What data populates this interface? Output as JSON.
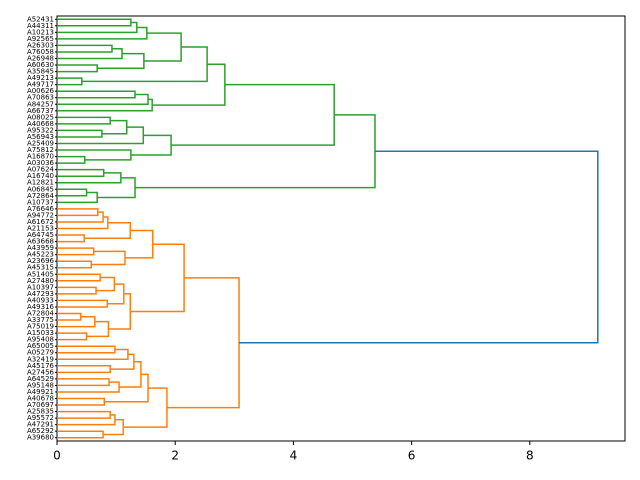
{
  "chart_data": {
    "type": "dendrogram",
    "orientation": "horizontal",
    "xlim": [
      0,
      9.61
    ],
    "xticks": [
      0,
      2,
      4,
      6,
      8
    ],
    "tree": {
      "height": 9.15,
      "color": "#1f77b4",
      "children": [
        {
          "height": 5.38,
          "color": "#2ca02c",
          "children": [
            {
              "height": 4.69,
              "children": [
                {
                  "height": 2.84,
                  "children": [
                    {
                      "height": 2.54,
                      "children": [
                        {
                          "height": 2.1,
                          "children": [
                            {
                              "height": 1.52,
                              "children": [
                                {
                                  "height": 1.35,
                                  "children": [
                                    {
                                      "height": 1.25,
                                      "children": [
                                        {
                                          "label": "A52431"
                                        },
                                        {
                                          "label": "A44311"
                                        }
                                      ]
                                    },
                                    {
                                      "label": "A10213"
                                    }
                                  ]
                                },
                                {
                                  "label": "A92565"
                                }
                              ]
                            },
                            {
                              "height": 1.47,
                              "children": [
                                {
                                  "height": 1.1,
                                  "children": [
                                    {
                                      "height": 0.93,
                                      "children": [
                                        {
                                          "label": "A26303"
                                        },
                                        {
                                          "label": "A76058"
                                        }
                                      ]
                                    },
                                    {
                                      "label": "A26948"
                                    }
                                  ]
                                },
                                {
                                  "height": 0.68,
                                  "children": [
                                    {
                                      "label": "A60630"
                                    },
                                    {
                                      "label": "A35845"
                                    }
                                  ]
                                }
                              ]
                            }
                          ]
                        },
                        {
                          "height": 0.42,
                          "children": [
                            {
                              "label": "A49213"
                            },
                            {
                              "label": "A49717"
                            }
                          ]
                        }
                      ]
                    },
                    {
                      "height": 1.61,
                      "children": [
                        {
                          "height": 1.54,
                          "children": [
                            {
                              "height": 1.32,
                              "children": [
                                {
                                  "label": "A00626"
                                },
                                {
                                  "label": "A70863"
                                }
                              ]
                            },
                            {
                              "label": "A84257"
                            }
                          ]
                        },
                        {
                          "label": "A66737"
                        }
                      ]
                    }
                  ]
                },
                {
                  "height": 1.93,
                  "children": [
                    {
                      "height": 1.46,
                      "children": [
                        {
                          "height": 1.18,
                          "children": [
                            {
                              "height": 0.9,
                              "children": [
                                {
                                  "label": "A08025"
                                },
                                {
                                  "label": "A40668"
                                }
                              ]
                            },
                            {
                              "height": 0.76,
                              "children": [
                                {
                                  "label": "A95322"
                                },
                                {
                                  "label": "A56943"
                                }
                              ]
                            }
                          ]
                        },
                        {
                          "label": "A25409"
                        }
                      ]
                    },
                    {
                      "height": 1.25,
                      "children": [
                        {
                          "label": "A75812"
                        },
                        {
                          "height": 0.47,
                          "children": [
                            {
                              "label": "A16870"
                            },
                            {
                              "label": "A03036"
                            }
                          ]
                        }
                      ]
                    }
                  ]
                }
              ]
            },
            {
              "height": 1.32,
              "children": [
                {
                  "height": 1.08,
                  "children": [
                    {
                      "height": 0.79,
                      "children": [
                        {
                          "label": "A07624"
                        },
                        {
                          "label": "A16740"
                        }
                      ]
                    },
                    {
                      "label": "A12821"
                    }
                  ]
                },
                {
                  "height": 0.68,
                  "children": [
                    {
                      "height": 0.5,
                      "children": [
                        {
                          "label": "A06845"
                        },
                        {
                          "label": "A72864"
                        }
                      ]
                    },
                    {
                      "label": "A10737"
                    }
                  ]
                }
              ]
            }
          ]
        },
        {
          "height": 3.08,
          "color": "#ff7f0e",
          "children": [
            {
              "height": 2.15,
              "children": [
                {
                  "height": 1.62,
                  "children": [
                    {
                      "height": 1.24,
                      "children": [
                        {
                          "height": 0.86,
                          "children": [
                            {
                              "height": 0.78,
                              "children": [
                                {
                                  "height": 0.69,
                                  "children": [
                                    {
                                      "label": "A76646"
                                    },
                                    {
                                      "label": "A94772"
                                    }
                                  ]
                                },
                                {
                                  "label": "A61672"
                                }
                              ]
                            },
                            {
                              "label": "A21153"
                            }
                          ]
                        },
                        {
                          "height": 0.46,
                          "children": [
                            {
                              "label": "A64745"
                            },
                            {
                              "label": "A63668"
                            }
                          ]
                        }
                      ]
                    },
                    {
                      "height": 1.15,
                      "children": [
                        {
                          "height": 0.62,
                          "children": [
                            {
                              "label": "A43959"
                            },
                            {
                              "label": "A45223"
                            }
                          ]
                        },
                        {
                          "height": 0.58,
                          "children": [
                            {
                              "label": "A23696"
                            },
                            {
                              "label": "A45315"
                            }
                          ]
                        }
                      ]
                    }
                  ]
                },
                {
                  "height": 1.24,
                  "children": [
                    {
                      "height": 1.13,
                      "children": [
                        {
                          "height": 0.97,
                          "children": [
                            {
                              "height": 0.73,
                              "children": [
                                {
                                  "label": "A51405"
                                },
                                {
                                  "label": "A27480"
                                }
                              ]
                            },
                            {
                              "height": 0.66,
                              "children": [
                                {
                                  "label": "A10397"
                                },
                                {
                                  "label": "A47293"
                                }
                              ]
                            }
                          ]
                        },
                        {
                          "height": 0.85,
                          "children": [
                            {
                              "label": "A40933"
                            },
                            {
                              "label": "A49316"
                            }
                          ]
                        }
                      ]
                    },
                    {
                      "height": 0.87,
                      "children": [
                        {
                          "height": 0.64,
                          "children": [
                            {
                              "height": 0.4,
                              "children": [
                                {
                                  "label": "A72804"
                                },
                                {
                                  "label": "A33775"
                                }
                              ]
                            },
                            {
                              "label": "A75019"
                            }
                          ]
                        },
                        {
                          "height": 0.5,
                          "children": [
                            {
                              "label": "A15033"
                            },
                            {
                              "label": "A95408"
                            }
                          ]
                        }
                      ]
                    }
                  ]
                }
              ]
            },
            {
              "height": 1.86,
              "children": [
                {
                  "height": 1.54,
                  "children": [
                    {
                      "height": 1.42,
                      "children": [
                        {
                          "height": 1.3,
                          "children": [
                            {
                              "height": 1.2,
                              "children": [
                                {
                                  "height": 0.98,
                                  "children": [
                                    {
                                      "label": "A65005"
                                    },
                                    {
                                      "label": "A05279"
                                    }
                                  ]
                                },
                                {
                                  "label": "A32419"
                                }
                              ]
                            },
                            {
                              "height": 0.9,
                              "children": [
                                {
                                  "label": "A45176"
                                },
                                {
                                  "label": "A27456"
                                }
                              ]
                            }
                          ]
                        },
                        {
                          "height": 1.05,
                          "children": [
                            {
                              "height": 0.88,
                              "children": [
                                {
                                  "label": "A64529"
                                },
                                {
                                  "label": "A95148"
                                }
                              ]
                            },
                            {
                              "label": "A49921"
                            }
                          ]
                        }
                      ]
                    },
                    {
                      "height": 0.8,
                      "children": [
                        {
                          "label": "A40678"
                        },
                        {
                          "label": "A70697"
                        }
                      ]
                    }
                  ]
                },
                {
                  "height": 1.12,
                  "children": [
                    {
                      "height": 0.98,
                      "children": [
                        {
                          "height": 0.9,
                          "children": [
                            {
                              "label": "A25835"
                            },
                            {
                              "label": "A95572"
                            }
                          ]
                        },
                        {
                          "label": "A47291"
                        }
                      ]
                    },
                    {
                      "height": 0.78,
                      "children": [
                        {
                          "label": "A65292"
                        },
                        {
                          "label": "A39680"
                        }
                      ]
                    }
                  ]
                }
              ]
            }
          ]
        }
      ]
    }
  }
}
